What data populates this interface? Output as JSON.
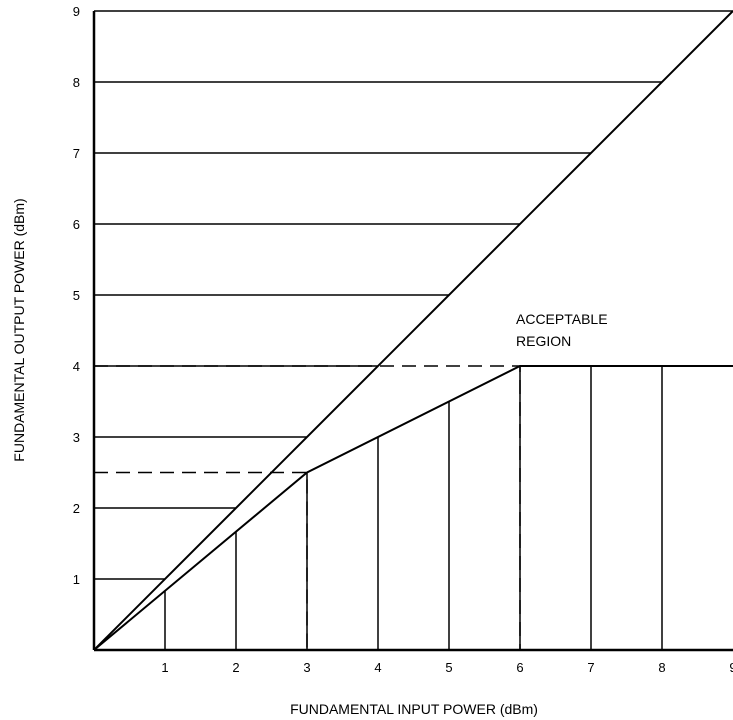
{
  "chart_data": {
    "type": "line",
    "title": "",
    "xlabel": "FUNDAMENTAL INPUT POWER (dBm)",
    "ylabel": "FUNDAMENTAL OUTPUT POWER (dBm)",
    "xlim": [
      0,
      9
    ],
    "ylim": [
      0,
      9
    ],
    "x_ticks": [
      "1",
      "2",
      "3",
      "4",
      "5",
      "6",
      "7",
      "8",
      "9"
    ],
    "y_ticks": [
      "1",
      "2",
      "3",
      "4",
      "5",
      "6",
      "7",
      "8",
      "9"
    ],
    "series": [
      {
        "x": [
          0,
          9
        ],
        "y": [
          0,
          9
        ]
      },
      {
        "x": [
          0,
          3,
          6,
          9
        ],
        "y": [
          0,
          2.5,
          4,
          4
        ]
      }
    ],
    "reference_lines": [
      {
        "style": "dashed",
        "x": [
          0,
          3,
          3
        ],
        "y": [
          2.5,
          2.5,
          0
        ]
      },
      {
        "style": "dashed",
        "x": [
          0,
          6,
          6
        ],
        "y": [
          4,
          4,
          0
        ]
      }
    ],
    "annotations": [
      {
        "text": "ACCEPTABLE",
        "x": 6,
        "y": 4.6
      },
      {
        "text": "REGION",
        "x": 6,
        "y": 4.25
      }
    ],
    "hatching": {
      "upper_region_horizontal_lines_at_y": [
        1,
        2,
        3,
        4,
        5,
        6,
        7,
        8
      ],
      "lower_region_vertical_lines_at_x": [
        1,
        2,
        3,
        4,
        5,
        6,
        7,
        8
      ]
    },
    "grid": false
  }
}
